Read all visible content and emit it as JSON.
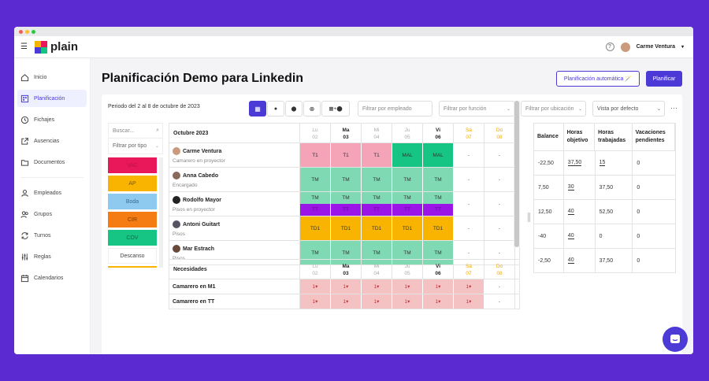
{
  "app": {
    "name": "plain",
    "user": "Carme Ventura"
  },
  "sidebar": {
    "items": [
      {
        "label": "Inicio",
        "icon": "home-icon"
      },
      {
        "label": "Planificación",
        "icon": "calendar-grid-icon"
      },
      {
        "label": "Fichajes",
        "icon": "clock-icon"
      },
      {
        "label": "Ausencias",
        "icon": "external-link-icon"
      },
      {
        "label": "Documentos",
        "icon": "folder-icon"
      }
    ],
    "items2": [
      {
        "label": "Empleados",
        "icon": "user-icon"
      },
      {
        "label": "Grupos",
        "icon": "users-icon"
      },
      {
        "label": "Turnos",
        "icon": "refresh-icon"
      },
      {
        "label": "Reglas",
        "icon": "sliders-icon"
      },
      {
        "label": "Calendarios",
        "icon": "calendar-icon"
      }
    ]
  },
  "page": {
    "title": "Planificación Demo para Linkedin",
    "auto_button": "Planificación automática 🪄",
    "plan_button": "Planificar",
    "period": "Periodo del 2 al 8 de octubre de 2023",
    "more": "···"
  },
  "toolbar": {
    "view_grid": "▦",
    "view_clock": "●",
    "view_location": "⬤",
    "view_zoom": "⊕",
    "view_grid_location": "▦+⬤"
  },
  "filters": {
    "employee": "Filtrar por empleado",
    "function": "Filtrar por función",
    "location": "Filtrar por ubicación",
    "view": "Vista por defecto"
  },
  "left": {
    "search": "Buscar...",
    "type_filter": "Filtrar por tipo",
    "types": [
      {
        "label": "VAC",
        "bg": "#e8185a",
        "fg": "#c0104a"
      },
      {
        "label": "AP",
        "bg": "#f8b400",
        "fg": "#7a5a00"
      },
      {
        "label": "Boda",
        "bg": "#8ec9f0",
        "fg": "#3a6d90"
      },
      {
        "label": "CIR",
        "bg": "#f57c13",
        "fg": "#7a3a00"
      },
      {
        "label": "COV",
        "bg": "#16c484",
        "fg": "#0a6e48"
      },
      {
        "label": "Descanso",
        "bg": "#ffffff",
        "fg": "#444444"
      }
    ]
  },
  "grid": {
    "month_label": "Octubre 2023",
    "days": [
      {
        "name": "Lu",
        "num": "02",
        "style": "muted"
      },
      {
        "name": "Ma",
        "num": "03",
        "style": "bold"
      },
      {
        "name": "Mi",
        "num": "04",
        "style": "muted"
      },
      {
        "name": "Ju",
        "num": "05",
        "style": "muted"
      },
      {
        "name": "Vi",
        "num": "06",
        "style": "bold"
      },
      {
        "name": "Sá",
        "num": "07",
        "style": "weekend"
      },
      {
        "name": "Do",
        "num": "08",
        "style": "weekend"
      }
    ],
    "employees": [
      {
        "name": "Carme Ventura",
        "role": "Camarero en proyector",
        "avatar": "#c99b7c",
        "cells": [
          {
            "t": "T1",
            "bg": "#f5a3b6"
          },
          {
            "t": "T1",
            "bg": "#f5a3b6"
          },
          {
            "t": "T1",
            "bg": "#f5a3b6"
          },
          {
            "t": "MAL",
            "bg": "#16c484"
          },
          {
            "t": "MAL",
            "bg": "#16c484"
          },
          {
            "t": "-",
            "bg": ""
          },
          {
            "t": "-",
            "bg": ""
          }
        ]
      },
      {
        "name": "Anna Cabedo",
        "role": "Encargado",
        "avatar": "#8a6a5a",
        "cells": [
          {
            "t": "TM",
            "bg": "#7fd9b2"
          },
          {
            "t": "TM",
            "bg": "#7fd9b2"
          },
          {
            "t": "TM",
            "bg": "#7fd9b2"
          },
          {
            "t": "TM",
            "bg": "#7fd9b2"
          },
          {
            "t": "TM",
            "bg": "#7fd9b2"
          },
          {
            "t": "-",
            "bg": ""
          },
          {
            "t": "-",
            "bg": ""
          }
        ]
      },
      {
        "name": "Rodolfo Mayor",
        "role": "Pisos en proyector",
        "avatar": "#222222",
        "cells": [
          {
            "t": "TM",
            "t2": "TT",
            "bg": "#7fd9b2",
            "bg2": "#9b16e6"
          },
          {
            "t": "TM",
            "t2": "TT",
            "bg": "#7fd9b2",
            "bg2": "#9b16e6"
          },
          {
            "t": "TM",
            "t2": "TT",
            "bg": "#7fd9b2",
            "bg2": "#9b16e6"
          },
          {
            "t": "TM",
            "t2": "TT",
            "bg": "#7fd9b2",
            "bg2": "#9b16e6"
          },
          {
            "t": "TM",
            "t2": "TT",
            "bg": "#7fd9b2",
            "bg2": "#9b16e6"
          },
          {
            "t": "-",
            "bg": ""
          },
          {
            "t": "-",
            "bg": ""
          }
        ]
      },
      {
        "name": "Antoni Guitart",
        "role": "Pisos",
        "avatar": "#555566",
        "cells": [
          {
            "t": "TD1",
            "bg": "#f8b400"
          },
          {
            "t": "TD1",
            "bg": "#f8b400"
          },
          {
            "t": "TD1",
            "bg": "#f8b400"
          },
          {
            "t": "TD1",
            "bg": "#f8b400"
          },
          {
            "t": "TD1",
            "bg": "#f8b400"
          },
          {
            "t": "-",
            "bg": ""
          },
          {
            "t": "-",
            "bg": ""
          }
        ]
      },
      {
        "name": "Mar Estrach",
        "role": "Pisos",
        "avatar": "#6a4a3a",
        "cells": [
          {
            "t": "TM",
            "bg": "#7fd9b2"
          },
          {
            "t": "TM",
            "bg": "#7fd9b2"
          },
          {
            "t": "TM",
            "bg": "#7fd9b2"
          },
          {
            "t": "TM",
            "bg": "#7fd9b2"
          },
          {
            "t": "TM",
            "bg": "#7fd9b2"
          },
          {
            "t": "-",
            "bg": ""
          },
          {
            "t": "-",
            "bg": ""
          }
        ]
      }
    ]
  },
  "needs": {
    "label": "Necesidades",
    "rows": [
      {
        "name": "Camarero en M1",
        "cells": [
          "1▾",
          "1▾",
          "1▾",
          "1▾",
          "1▾",
          "1▾",
          "-"
        ]
      },
      {
        "name": "Camarero en TT",
        "cells": [
          "1▾",
          "1▾",
          "1▾",
          "1▾",
          "1▾",
          "1▾",
          "-"
        ]
      }
    ]
  },
  "stats": {
    "headers": [
      "Balance",
      "Horas objetivo",
      "Horas trabajadas",
      "Vacaciones pendientes"
    ],
    "rows": [
      [
        "-22,50",
        "37,50",
        "15",
        "0"
      ],
      [
        "7,50",
        "30",
        "37,50",
        "0"
      ],
      [
        "12,50",
        "40",
        "52,50",
        "0"
      ],
      [
        "-40",
        "40",
        "0",
        "0"
      ],
      [
        "-2,50",
        "40",
        "37,50",
        "0"
      ]
    ]
  }
}
